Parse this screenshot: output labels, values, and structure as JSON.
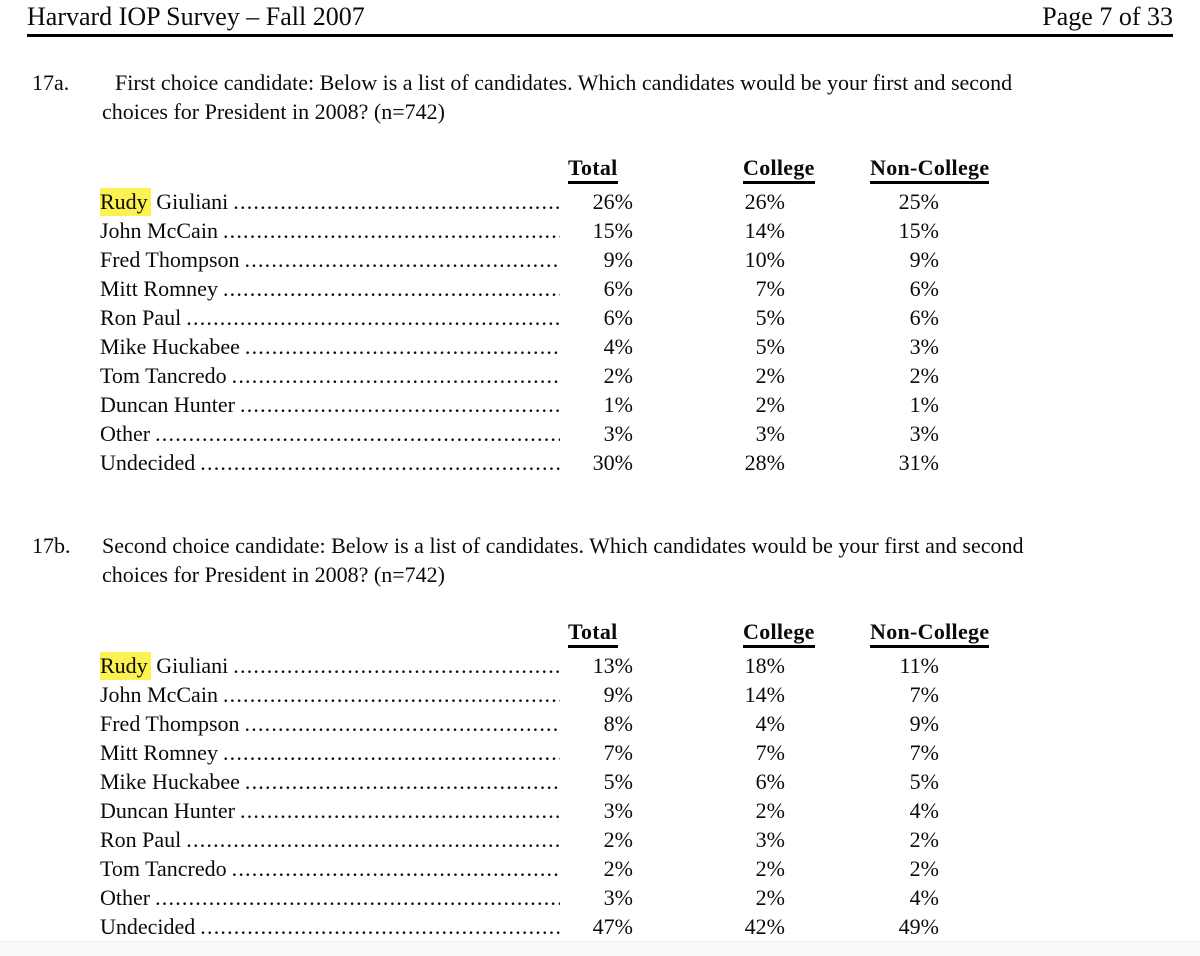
{
  "header": {
    "title": "Harvard IOP Survey – Fall 2007",
    "page_label": "Page 7 of 33"
  },
  "highlight_color": "#fbf151",
  "q17a": {
    "number": "17a.",
    "lines": [
      "First choice candidate: Below is a list of candidates. Which candidates would be your first and second",
      "choices for President in 2008? (n=742)"
    ],
    "columns": [
      "Total",
      "College",
      "Non-College"
    ],
    "rows": [
      {
        "hl": "Rudy",
        "name": "Giuliani",
        "total": "26%",
        "college": "26%",
        "non_college": "25%"
      },
      {
        "name": "John McCain",
        "total": "15%",
        "college": "14%",
        "non_college": "15%"
      },
      {
        "name": "Fred Thompson",
        "total": "9%",
        "college": "10%",
        "non_college": "9%"
      },
      {
        "name": "Mitt Romney",
        "total": "6%",
        "college": "7%",
        "non_college": "6%"
      },
      {
        "name": "Ron Paul",
        "total": "6%",
        "college": "5%",
        "non_college": "6%"
      },
      {
        "name": "Mike Huckabee",
        "total": "4%",
        "college": "5%",
        "non_college": "3%"
      },
      {
        "name": "Tom Tancredo",
        "total": "2%",
        "college": "2%",
        "non_college": "2%"
      },
      {
        "name": "Duncan Hunter",
        "total": "1%",
        "college": "2%",
        "non_college": "1%"
      },
      {
        "name": "Other",
        "total": "3%",
        "college": "3%",
        "non_college": "3%"
      },
      {
        "name": "Undecided",
        "total": "30%",
        "college": "28%",
        "non_college": "31%"
      }
    ]
  },
  "q17b": {
    "number": "17b.",
    "lines": [
      "Second choice candidate: Below is a list of candidates. Which candidates would be your first and second",
      "choices for President in 2008? (n=742)"
    ],
    "columns": [
      "Total",
      "College",
      "Non-College"
    ],
    "rows": [
      {
        "hl": "Rudy",
        "name": "Giuliani",
        "total": "13%",
        "college": "18%",
        "non_college": "11%"
      },
      {
        "name": "John McCain",
        "total": "9%",
        "college": "14%",
        "non_college": "7%"
      },
      {
        "name": "Fred Thompson",
        "total": "8%",
        "college": "4%",
        "non_college": "9%"
      },
      {
        "name": "Mitt Romney",
        "total": "7%",
        "college": "7%",
        "non_college": "7%"
      },
      {
        "name": "Mike Huckabee",
        "total": "5%",
        "college": "6%",
        "non_college": "5%"
      },
      {
        "name": "Duncan Hunter",
        "total": "3%",
        "college": "2%",
        "non_college": "4%"
      },
      {
        "name": "Ron Paul",
        "total": "2%",
        "college": "3%",
        "non_college": "2%"
      },
      {
        "name": "Tom Tancredo",
        "total": "2%",
        "college": "2%",
        "non_college": "2%"
      },
      {
        "name": "Other",
        "total": "3%",
        "college": "2%",
        "non_college": "4%"
      },
      {
        "name": "Undecided",
        "total": "47%",
        "college": "42%",
        "non_college": "49%"
      }
    ]
  }
}
